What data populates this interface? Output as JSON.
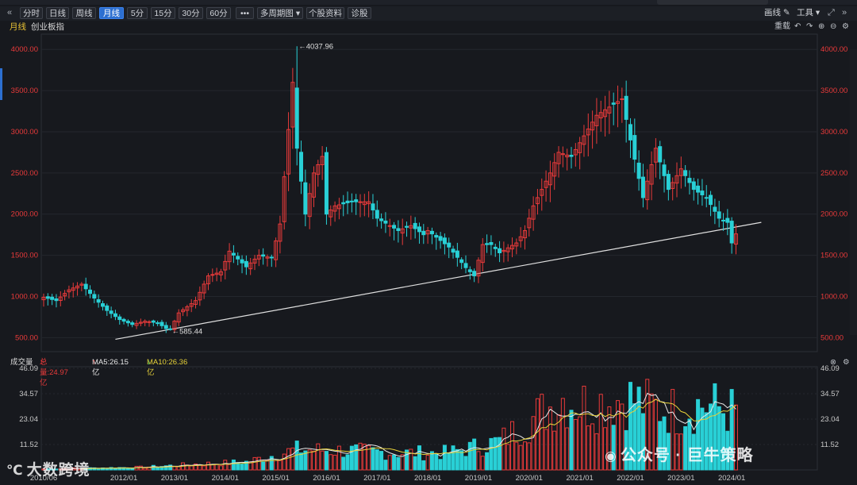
{
  "toolbar": {
    "collapse_glyph": "«",
    "buttons": [
      "分时",
      "日线",
      "周线",
      "月线",
      "5分",
      "15分",
      "30分",
      "60分",
      "•••"
    ],
    "active": "月线",
    "period_menu": "多周期图",
    "period_caret": "▾",
    "profile_btn": "个股资料",
    "diagnose_btn": "诊股",
    "draw_label": "画线",
    "tools_label": "工具",
    "tools_caret": "▾",
    "fullscreen_glyph": "⤢",
    "expand_glyph": "»"
  },
  "subhead": {
    "period": "月线",
    "index_name": "创业板指",
    "reset_label": "重载",
    "undo_glyph": "↶",
    "redo_glyph": "↷",
    "zoom_in_glyph": "⊕",
    "zoom_out_glyph": "⊖",
    "settings_glyph": "⚙"
  },
  "volume_header": {
    "label": "成交量",
    "total": "总量:24.97亿",
    "total_arrow": "↑",
    "ma5": "MA5:26.15亿",
    "ma5_arrow": "↑",
    "ma10": "MA10:26.36亿",
    "ma10_arrow": "↓",
    "close_glyph": "⊗",
    "settings_glyph": "⚙"
  },
  "colors": {
    "up": "#e83a3a",
    "down": "#29d0d6",
    "axis_price": "#e83a3a",
    "ma5": "#e8e8e8",
    "ma10": "#e8d23a",
    "trend": "#e0e0e0"
  },
  "chart_data": {
    "type": "candlestick",
    "price_axis": {
      "ticks": [
        500,
        1000,
        1500,
        2000,
        2500,
        3000,
        3500,
        4000
      ],
      "labels": [
        "500.00",
        "1000.00",
        "1500.00",
        "2000.00",
        "2500.00",
        "3000.00",
        "3500.00",
        "4000.00"
      ],
      "ylim": [
        330,
        4060
      ]
    },
    "volume_axis": {
      "ticks": [
        11.52,
        23.04,
        34.57,
        46.09
      ],
      "labels": [
        "11.52",
        "23.04",
        "34.57",
        "46.09"
      ],
      "unit": "亿",
      "ylim": [
        0,
        46.09
      ]
    },
    "x_labels": [
      "2010/06",
      "2012/01",
      "2013/01",
      "2014/01",
      "2015/01",
      "2016/01",
      "2017/01",
      "2018/01",
      "2019/01",
      "2020/01",
      "2021/01",
      "2022/01",
      "2023/01",
      "2024/01"
    ],
    "annotations": [
      {
        "text": "4037.96",
        "value": 4037.96,
        "kind": "high"
      },
      {
        "text": "585.44",
        "value": 585.44,
        "kind": "low"
      }
    ],
    "trendline": {
      "from": {
        "date": "2011/11",
        "value": 480
      },
      "to": {
        "date": "2024/08",
        "value": 1900
      }
    },
    "anchors": [
      [
        "2010/06",
        990
      ],
      [
        "2010/09",
        950
      ],
      [
        "2010/12",
        1080
      ],
      [
        "2011/03",
        1150
      ],
      [
        "2011/06",
        980
      ],
      [
        "2011/09",
        830
      ],
      [
        "2011/12",
        720
      ],
      [
        "2012/03",
        660
      ],
      [
        "2012/06",
        700
      ],
      [
        "2012/09",
        680
      ],
      [
        "2012/11",
        610
      ],
      [
        "2012/12",
        600
      ],
      [
        "2013/02",
        800
      ],
      [
        "2013/06",
        950
      ],
      [
        "2013/09",
        1250
      ],
      [
        "2013/12",
        1300
      ],
      [
        "2014/02",
        1550
      ],
      [
        "2014/06",
        1360
      ],
      [
        "2014/09",
        1500
      ],
      [
        "2014/12",
        1470
      ],
      [
        "2015/02",
        1880
      ],
      [
        "2015/05",
        3600
      ],
      [
        "2015/06",
        2800
      ],
      [
        "2015/08",
        2000
      ],
      [
        "2015/10",
        2500
      ],
      [
        "2015/12",
        2700
      ],
      [
        "2016/01",
        2000
      ],
      [
        "2016/03",
        2100
      ],
      [
        "2016/07",
        2150
      ],
      [
        "2016/11",
        2150
      ],
      [
        "2017/01",
        1950
      ],
      [
        "2017/06",
        1800
      ],
      [
        "2017/09",
        1860
      ],
      [
        "2017/12",
        1750
      ],
      [
        "2018/01",
        1800
      ],
      [
        "2018/06",
        1600
      ],
      [
        "2018/10",
        1350
      ],
      [
        "2018/12",
        1250
      ],
      [
        "2019/02",
        1630
      ],
      [
        "2019/04",
        1630
      ],
      [
        "2019/06",
        1530
      ],
      [
        "2019/10",
        1650
      ],
      [
        "2019/12",
        1800
      ],
      [
        "2020/02",
        2100
      ],
      [
        "2020/06",
        2500
      ],
      [
        "2020/08",
        2750
      ],
      [
        "2020/11",
        2700
      ],
      [
        "2021/02",
        2950
      ],
      [
        "2021/05",
        3200
      ],
      [
        "2021/08",
        3300
      ],
      [
        "2021/11",
        3400
      ],
      [
        "2022/01",
        2900
      ],
      [
        "2022/04",
        2200
      ],
      [
        "2022/07",
        2800
      ],
      [
        "2022/10",
        2300
      ],
      [
        "2023/01",
        2550
      ],
      [
        "2023/04",
        2300
      ],
      [
        "2023/07",
        2200
      ],
      [
        "2023/10",
        1950
      ],
      [
        "2023/12",
        1900
      ],
      [
        "2024/01",
        1650
      ],
      [
        "2024/02",
        1760
      ]
    ],
    "volume_anchors": [
      [
        "2010/06",
        0.4
      ],
      [
        "2011/06",
        0.8
      ],
      [
        "2012/06",
        1.2
      ],
      [
        "2013/06",
        2.5
      ],
      [
        "2014/06",
        3.5
      ],
      [
        "2015/06",
        9.0
      ],
      [
        "2016/06",
        8.5
      ],
      [
        "2017/06",
        7.5
      ],
      [
        "2018/06",
        7.5
      ],
      [
        "2019/06",
        12.5
      ],
      [
        "2020/06",
        28.0
      ],
      [
        "2020/09",
        32.0
      ],
      [
        "2021/01",
        29.0
      ],
      [
        "2021/06",
        30.0
      ],
      [
        "2021/12",
        32.0
      ],
      [
        "2022/06",
        28.0
      ],
      [
        "2022/12",
        26.0
      ],
      [
        "2023/06",
        29.0
      ],
      [
        "2024/01",
        26.0
      ],
      [
        "2024/02",
        24.97
      ]
    ]
  },
  "watermark": {
    "left_text": "大数跨境",
    "right_text": "公众号 · 巨牛策略"
  }
}
